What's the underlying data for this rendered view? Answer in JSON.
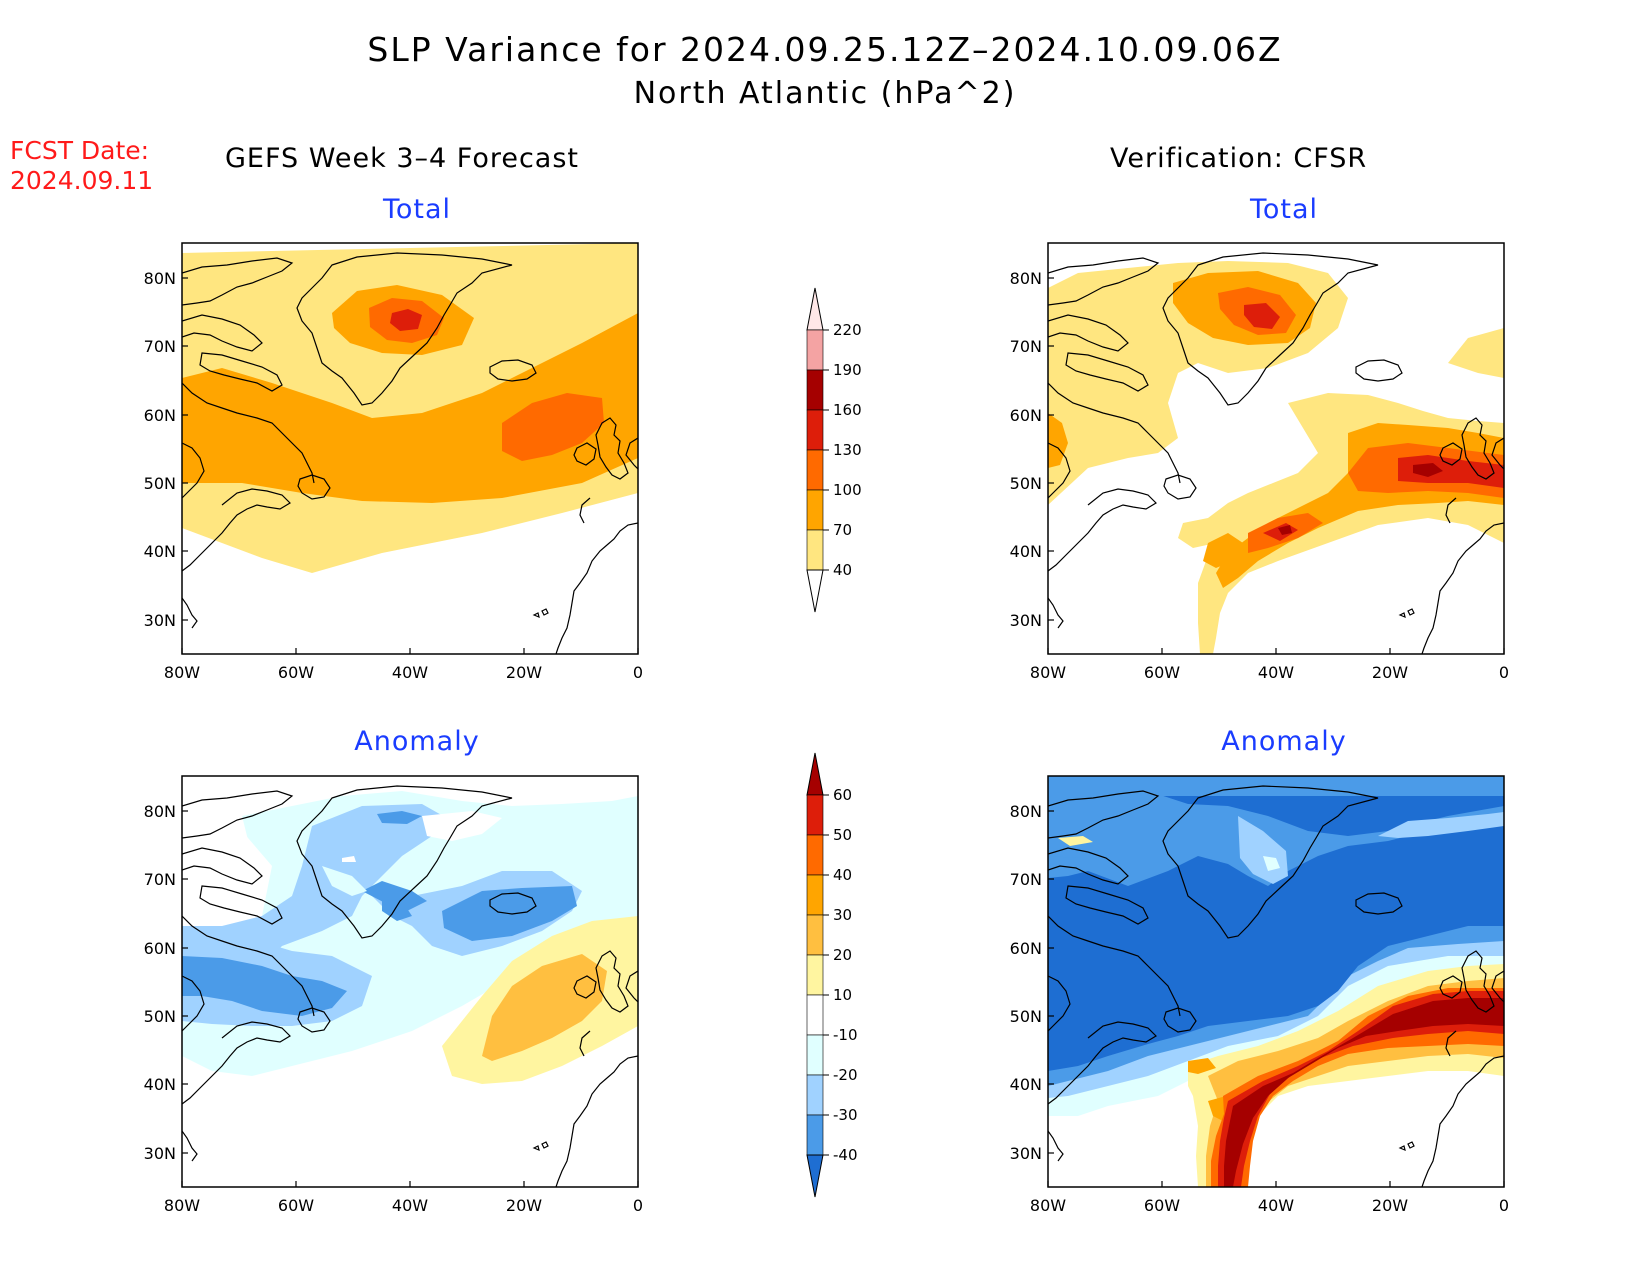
{
  "header": {
    "title": "SLP Variance for 2024.09.25.12Z–2024.10.09.06Z",
    "subtitle": "North Atlantic (hPa^2)",
    "fcst_label": "FCST Date:",
    "fcst_date": "2024.09.11"
  },
  "columns": {
    "left": "GEFS Week 3–4 Forecast",
    "right": "Verification: CFSR"
  },
  "panels": {
    "fcst_total": "Total",
    "verif_total": "Total",
    "fcst_anom": "Anomaly",
    "verif_anom": "Anomaly"
  },
  "axes": {
    "lat_labels": [
      "80N",
      "70N",
      "60N",
      "50N",
      "40N",
      "30N"
    ],
    "lon_labels": [
      "80W",
      "60W",
      "40W",
      "20W",
      "0"
    ]
  },
  "total_colorbar": {
    "levels": [
      "220",
      "190",
      "160",
      "130",
      "100",
      "70",
      "40"
    ],
    "colors": [
      "#ffe8e8",
      "#f4a3a3",
      "#a50000",
      "#dd1e0a",
      "#ff6a00",
      "#ffa500",
      "#ffe680"
    ]
  },
  "anomaly_colorbar": {
    "levels": [
      "60",
      "50",
      "40",
      "30",
      "20",
      "10",
      "-10",
      "-20",
      "-30",
      "-40"
    ],
    "colors": [
      "#a50000",
      "#dd1e0a",
      "#ff6a00",
      "#ffa500",
      "#ffbf40",
      "#fff5a0",
      "#ffffff",
      "#e0ffff",
      "#a0d2ff",
      "#4b9be8",
      "#1e6ed2"
    ]
  }
}
